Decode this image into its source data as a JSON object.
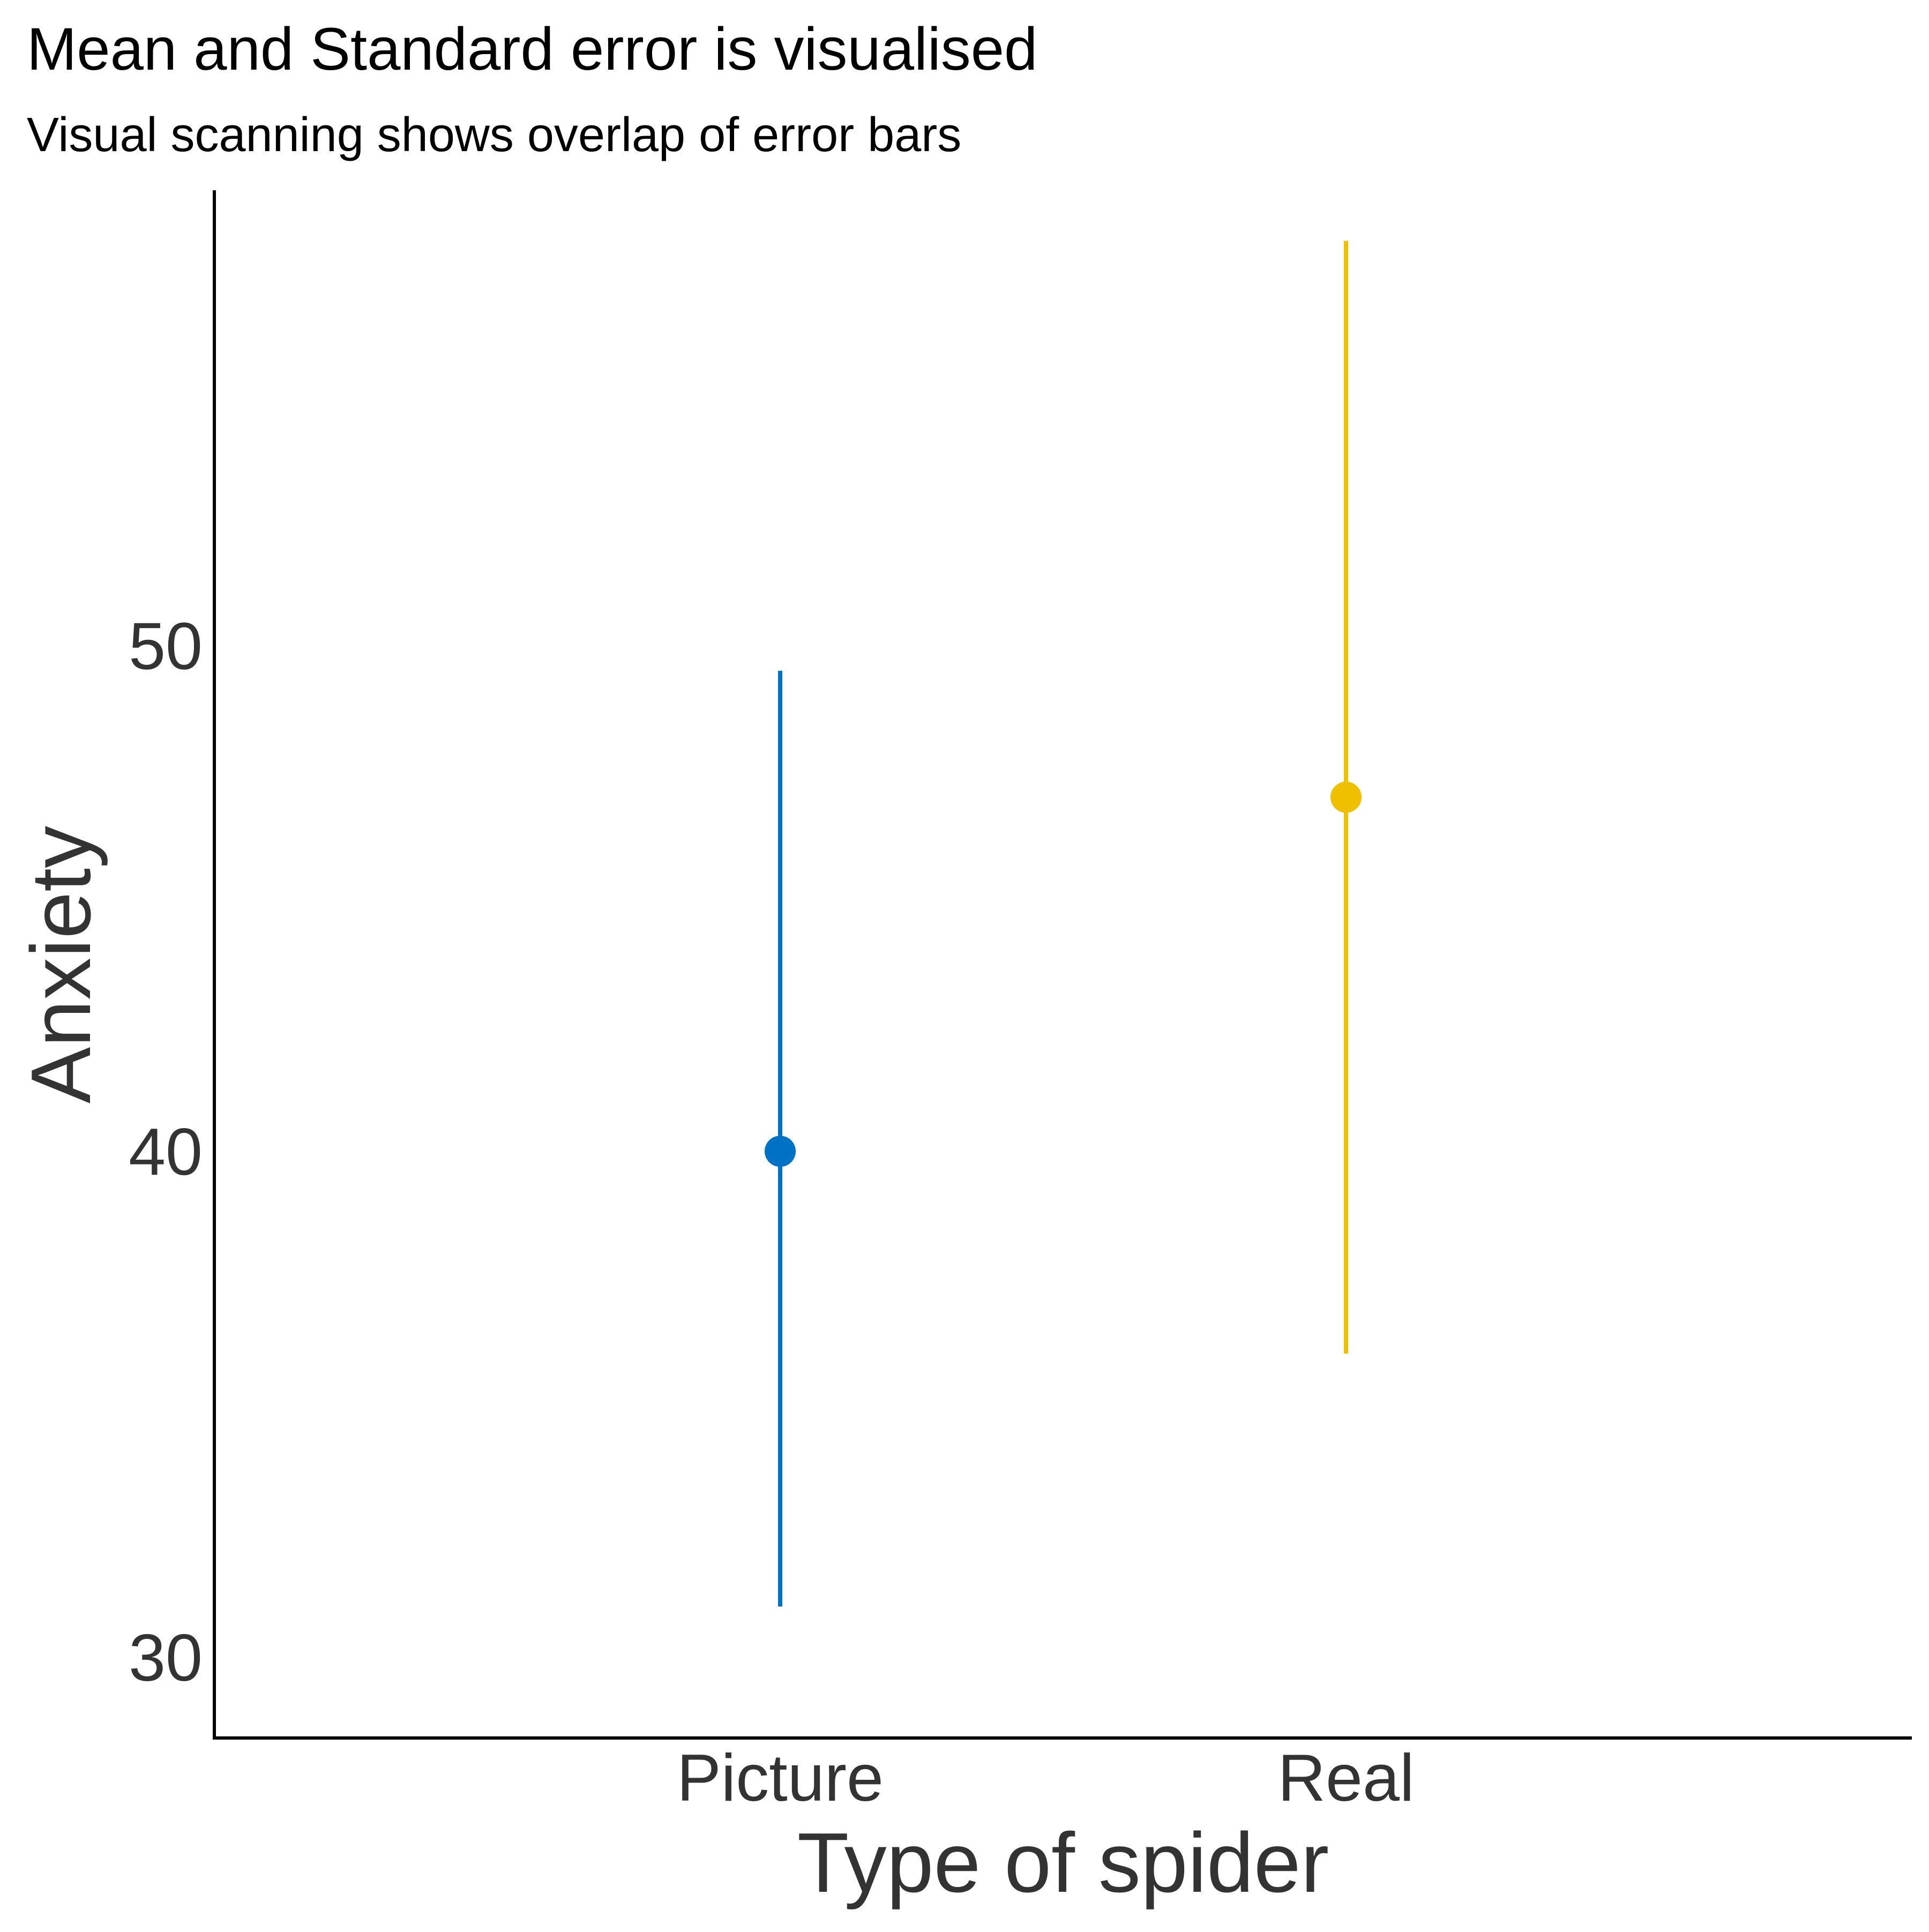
{
  "chart_data": {
    "type": "scatter",
    "title": "Mean and Standard error is visualised",
    "subtitle": "Visual scanning shows overlap of error bars",
    "xlabel": "Type of spider",
    "ylabel": "Anxiety",
    "categories": [
      "Picture",
      "Real"
    ],
    "y_ticks": [
      30,
      40,
      50
    ],
    "ylim": [
      28.4,
      59.0
    ],
    "grid": false,
    "legend": "none",
    "points": [
      {
        "category": "Picture",
        "mean": 40.0,
        "lower": 31.0,
        "upper": 49.5,
        "color": "#0072C6"
      },
      {
        "category": "Real",
        "mean": 47.0,
        "lower": 36.0,
        "upper": 58.0,
        "color": "#EFC000"
      }
    ]
  }
}
